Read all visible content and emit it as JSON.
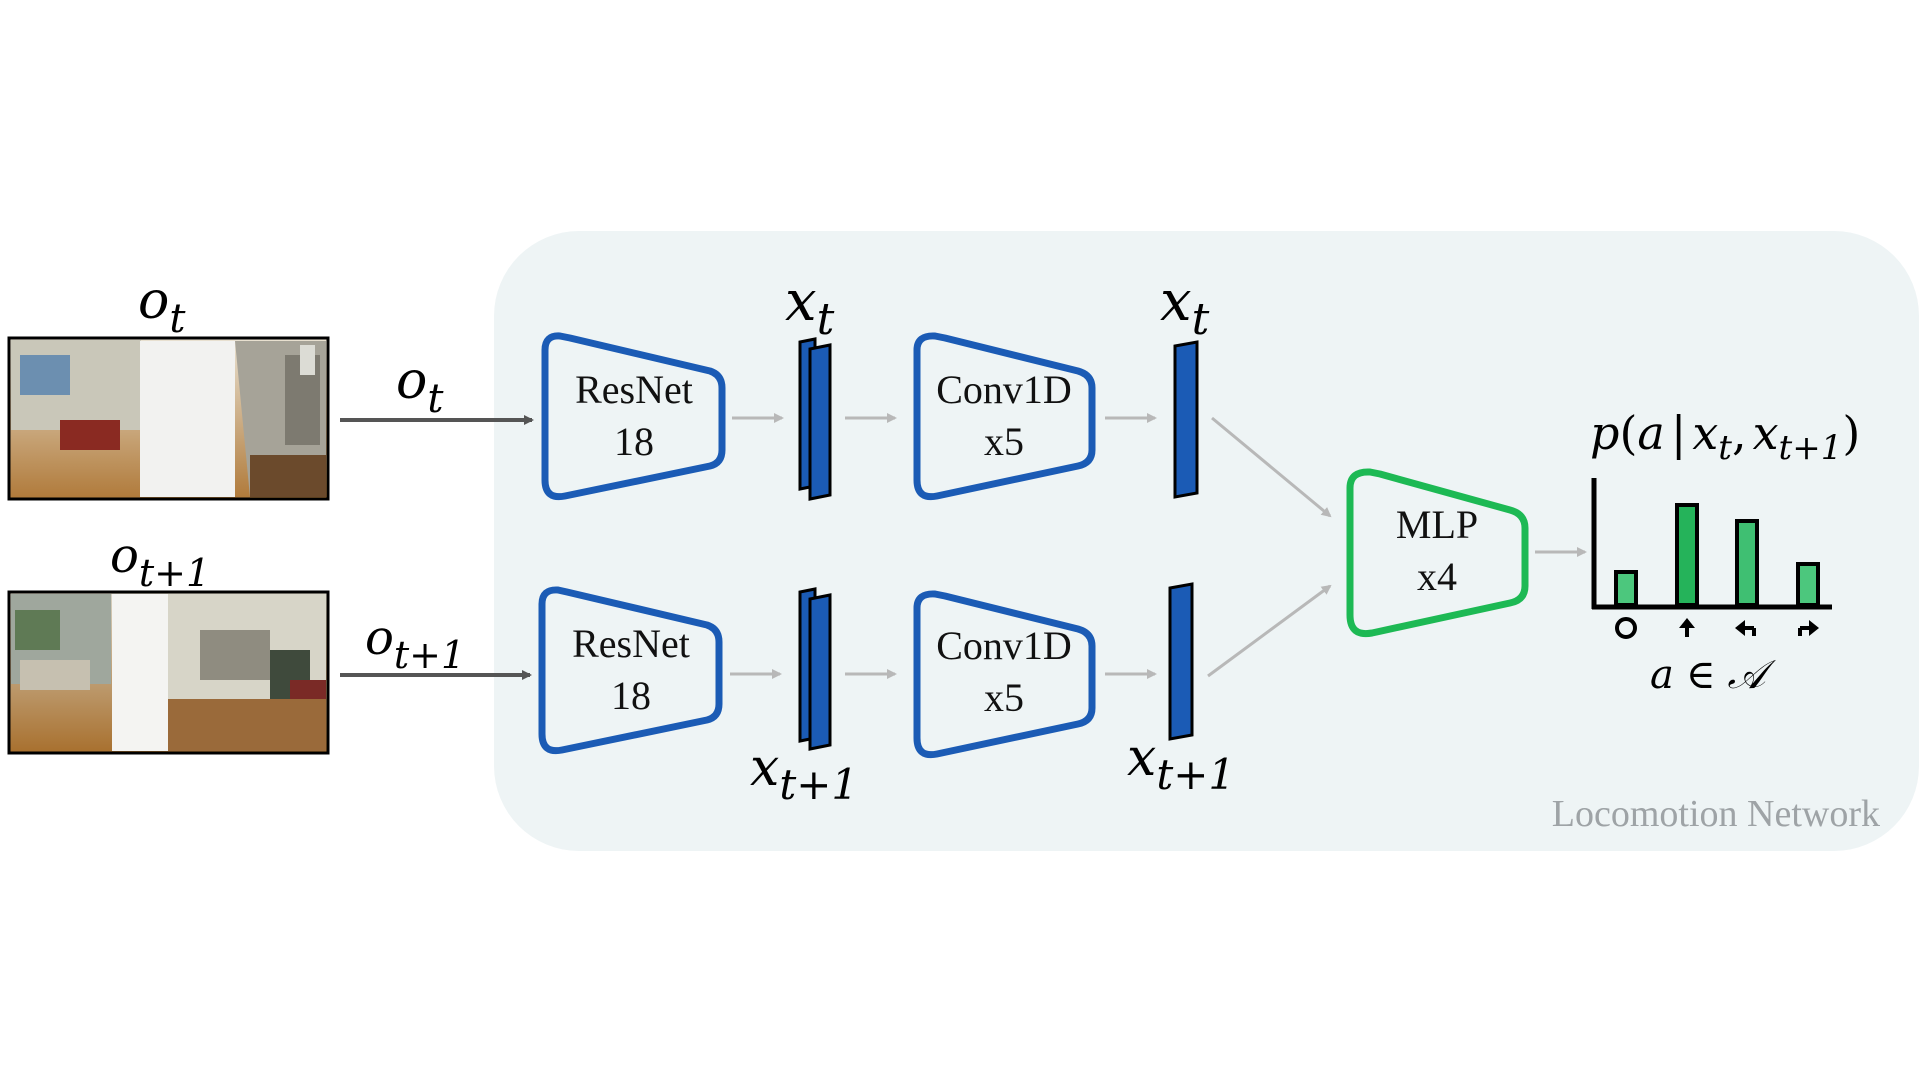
{
  "inputs": [
    {
      "label": "o",
      "sub": "t",
      "arrow_label": "o",
      "arrow_sub": "t"
    },
    {
      "label": "o",
      "sub": "t+1",
      "arrow_label": "o",
      "arrow_sub": "t+1"
    }
  ],
  "encoder": {
    "line1": "ResNet",
    "line2": "18"
  },
  "conv": {
    "line1": "Conv1D",
    "line2": "x5"
  },
  "features": [
    {
      "label": "x",
      "sub": "t"
    },
    {
      "label": "x",
      "sub": "t+1"
    }
  ],
  "mlp": {
    "line1": "MLP",
    "line2": "x4"
  },
  "output": {
    "formula": {
      "p": "p",
      "open": "(",
      "a": "a",
      "bar": "|",
      "x1": "x",
      "s1": "t",
      "comma": ",",
      "x2": "x",
      "s2": "t+1",
      "close": ")"
    },
    "action_set": {
      "a": "a",
      "in": "∈",
      "set": "𝒜"
    },
    "bars": [
      0.33,
      1.0,
      0.84,
      0.41
    ],
    "action_icons": [
      "stop-icon",
      "arrow-up-icon",
      "arrow-left-icon",
      "arrow-right-icon"
    ]
  },
  "network_title": "Locomotion Network",
  "colors": {
    "blue": "#1b5bb5",
    "green": "#1db954",
    "bar_dark": "#25b35a",
    "bar_light": "#4cc77d",
    "panel": "#eef4f5",
    "arrow_dark": "#555555",
    "arrow_light": "#b8b8b8"
  }
}
